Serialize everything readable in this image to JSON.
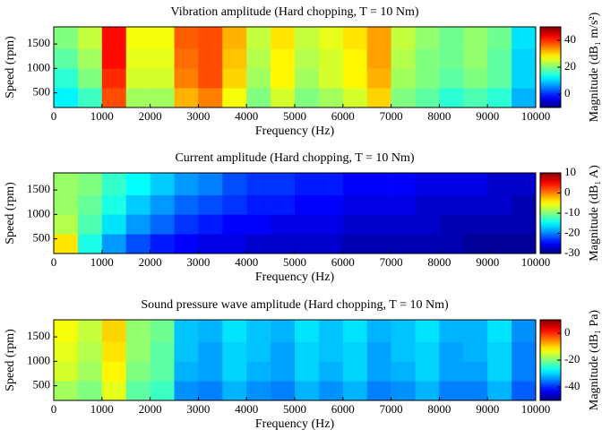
{
  "chart_data": [
    {
      "type": "heatmap",
      "title": "Vibration amplitude (Hard chopping, T = 10 Nm)",
      "xlabel": "Frequency (Hz)",
      "ylabel": "Speed (rpm)",
      "colorbar_label": "Magnitude (dB₁ m/s²)",
      "colormap": "jet",
      "xlim": [
        0,
        10000
      ],
      "xticks": [
        0,
        1000,
        2000,
        3000,
        4000,
        5000,
        6000,
        7000,
        8000,
        9000,
        10000
      ],
      "ylim": [
        200,
        1850
      ],
      "yticks": [
        500,
        1000,
        1500
      ],
      "clim": [
        -10,
        50
      ],
      "cticks": [
        0,
        20,
        40
      ],
      "xbins": [
        0,
        500,
        1000,
        1500,
        2000,
        2500,
        3000,
        3500,
        4000,
        4500,
        5000,
        5500,
        6000,
        6500,
        7000,
        7500,
        8000,
        8500,
        9000,
        9500,
        10000
      ],
      "ybins": [
        200,
        600,
        1000,
        1400,
        1850
      ],
      "values": [
        [
          12,
          16,
          38,
          22,
          22,
          32,
          35,
          27,
          20,
          25,
          20,
          22,
          25,
          30,
          20,
          18,
          15,
          17,
          15,
          8
        ],
        [
          15,
          20,
          40,
          25,
          25,
          35,
          38,
          30,
          22,
          28,
          22,
          25,
          28,
          32,
          22,
          20,
          18,
          20,
          18,
          10
        ],
        [
          18,
          22,
          42,
          26,
          26,
          36,
          38,
          31,
          23,
          28,
          23,
          25,
          28,
          33,
          23,
          20,
          19,
          21,
          18,
          10
        ],
        [
          20,
          24,
          42,
          27,
          27,
          37,
          38,
          32,
          24,
          29,
          24,
          26,
          29,
          33,
          24,
          21,
          19,
          21,
          19,
          11
        ]
      ]
    },
    {
      "type": "heatmap",
      "title": "Current amplitude (Hard chopping, T = 10 Nm)",
      "xlabel": "Frequency (Hz)",
      "ylabel": "Speed (rpm)",
      "colorbar_label": "Magnitude (dB₁ A)",
      "colormap": "jet",
      "xlim": [
        0,
        10000
      ],
      "xticks": [
        0,
        1000,
        2000,
        3000,
        4000,
        5000,
        6000,
        7000,
        8000,
        9000,
        10000
      ],
      "ylim": [
        200,
        1850
      ],
      "yticks": [
        500,
        1000,
        1500
      ],
      "clim": [
        -30,
        10
      ],
      "cticks": [
        -30,
        -20,
        -10,
        0,
        10
      ],
      "xbins": [
        0,
        500,
        1000,
        1500,
        2000,
        2500,
        3000,
        3500,
        4000,
        4500,
        5000,
        5500,
        6000,
        6500,
        7000,
        7500,
        8000,
        8500,
        9000,
        9500,
        10000
      ],
      "ybins": [
        200,
        600,
        1000,
        1400,
        1850
      ],
      "values": [
        [
          -4,
          -14,
          -19,
          -22,
          -24,
          -25,
          -26,
          -26,
          -27,
          -27,
          -27,
          -27,
          -28,
          -28,
          -28,
          -28,
          -28,
          -29,
          -29,
          -29
        ],
        [
          -8,
          -12,
          -16,
          -19,
          -21,
          -23,
          -24,
          -25,
          -25,
          -26,
          -26,
          -26,
          -27,
          -27,
          -27,
          -27,
          -28,
          -28,
          -28,
          -28
        ],
        [
          -9,
          -11,
          -14,
          -17,
          -19,
          -21,
          -22,
          -23,
          -24,
          -24,
          -25,
          -25,
          -26,
          -26,
          -26,
          -27,
          -27,
          -27,
          -27,
          -28
        ],
        [
          -9,
          -10,
          -13,
          -15,
          -17,
          -19,
          -20,
          -22,
          -23,
          -23,
          -24,
          -24,
          -25,
          -25,
          -25,
          -26,
          -26,
          -26,
          -27,
          -27
        ]
      ]
    },
    {
      "type": "heatmap",
      "title": "Sound pressure wave amplitude (Hard chopping, T = 10 Nm)",
      "xlabel": "Frequency (Hz)",
      "ylabel": "Speed (rpm)",
      "colorbar_label": "Magnitude (dB₁ Pa)",
      "colormap": "jet",
      "xlim": [
        0,
        10000
      ],
      "xticks": [
        0,
        1000,
        2000,
        3000,
        4000,
        5000,
        6000,
        7000,
        8000,
        9000,
        10000
      ],
      "ylim": [
        200,
        1850
      ],
      "yticks": [
        500,
        1000,
        1500
      ],
      "clim": [
        -50,
        10
      ],
      "cticks": [
        -40,
        -20,
        0
      ],
      "xbins": [
        0,
        500,
        1000,
        1500,
        2000,
        2500,
        3000,
        3500,
        4000,
        4500,
        5000,
        5500,
        6000,
        6500,
        7000,
        7500,
        8000,
        8500,
        9000,
        9500,
        10000
      ],
      "ybins": [
        200,
        600,
        1000,
        1400,
        1850
      ],
      "values": [
        [
          -18,
          -20,
          -14,
          -22,
          -24,
          -34,
          -35,
          -32,
          -34,
          -35,
          -32,
          -34,
          -32,
          -35,
          -34,
          -32,
          -35,
          -35,
          -32,
          -37
        ],
        [
          -15,
          -18,
          -12,
          -20,
          -22,
          -32,
          -33,
          -30,
          -32,
          -33,
          -30,
          -32,
          -30,
          -33,
          -32,
          -30,
          -33,
          -33,
          -30,
          -35
        ],
        [
          -14,
          -17,
          -11,
          -19,
          -22,
          -31,
          -33,
          -30,
          -31,
          -33,
          -30,
          -31,
          -30,
          -33,
          -31,
          -30,
          -33,
          -32,
          -30,
          -35
        ],
        [
          -13,
          -16,
          -10,
          -19,
          -21,
          -31,
          -32,
          -29,
          -31,
          -32,
          -29,
          -31,
          -29,
          -32,
          -31,
          -29,
          -32,
          -32,
          -29,
          -34
        ]
      ]
    }
  ]
}
